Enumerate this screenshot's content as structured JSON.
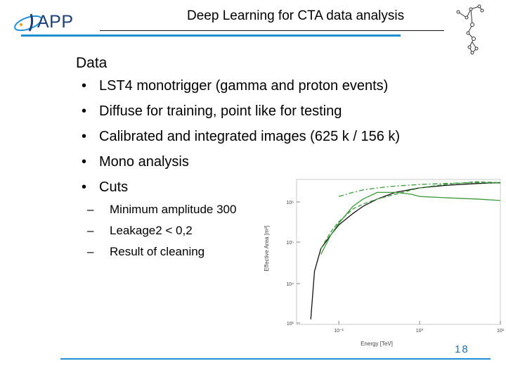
{
  "header": {
    "logo_text": "APP",
    "title": "Deep Learning for CTA data analysis"
  },
  "content": {
    "heading": "Data",
    "bullets": [
      "LST4 monotrigger (gamma and proton events)",
      "Diffuse for training, point like for testing",
      "Calibrated and integrated images (625 k / 156 k)",
      "Mono analysis",
      "Cuts"
    ],
    "sub_bullets": [
      "Minimum amplitude 300",
      "Leakage2 < 0,2",
      "Result of cleaning"
    ]
  },
  "footer": {
    "page_number": "18"
  },
  "colors": {
    "accent_blue": "#1f8fd6",
    "logo_blue": "#1f3f77",
    "series_green": "#3a9b3a",
    "series_black": "#111111"
  },
  "chart_data": {
    "type": "line",
    "xlabel": "Energy [TeV]",
    "ylabel": "Effective Area [m²]",
    "xscale": "log",
    "yscale": "log",
    "xlim": [
      0.03,
      10
    ],
    "ylim": [
      7,
      200000
    ],
    "x_ticks": [
      "10⁻¹",
      "10⁰",
      "10¹"
    ],
    "y_ticks": [
      "10¹",
      "10⁴",
      "10⁵",
      "10⁶"
    ],
    "grid": false,
    "series": [
      {
        "style": "solid",
        "color": "#111111",
        "x": [
          0.045,
          0.05,
          0.06,
          0.08,
          0.1,
          0.15,
          0.2,
          0.3,
          0.5,
          1,
          2,
          5,
          10
        ],
        "values": [
          10,
          300,
          1500,
          4000,
          8000,
          18000,
          30000,
          50000,
          80000,
          110000,
          130000,
          150000,
          160000
        ]
      },
      {
        "style": "solid",
        "color": "#3a9b3a",
        "x": [
          0.06,
          0.08,
          0.1,
          0.15,
          0.2,
          0.3,
          0.5,
          0.8,
          1,
          2,
          5,
          10
        ],
        "values": [
          1000,
          4000,
          9000,
          30000,
          50000,
          80000,
          80000,
          70000,
          60000,
          55000,
          50000,
          45000
        ]
      },
      {
        "style": "dashed",
        "color": "#3a9b3a",
        "x": [
          0.06,
          0.08,
          0.1,
          0.15,
          0.2,
          0.3,
          0.5,
          1,
          2,
          5,
          10
        ],
        "values": [
          1500,
          5000,
          10000,
          25000,
          35000,
          50000,
          70000,
          110000,
          140000,
          170000,
          160000
        ]
      },
      {
        "style": "dashdot",
        "color": "#3a9b3a",
        "x": [
          0.1,
          0.15,
          0.2,
          0.3,
          0.5,
          1,
          2,
          5,
          10
        ],
        "values": [
          60000,
          80000,
          95000,
          110000,
          125000,
          140000,
          150000,
          160000,
          155000
        ]
      }
    ]
  }
}
